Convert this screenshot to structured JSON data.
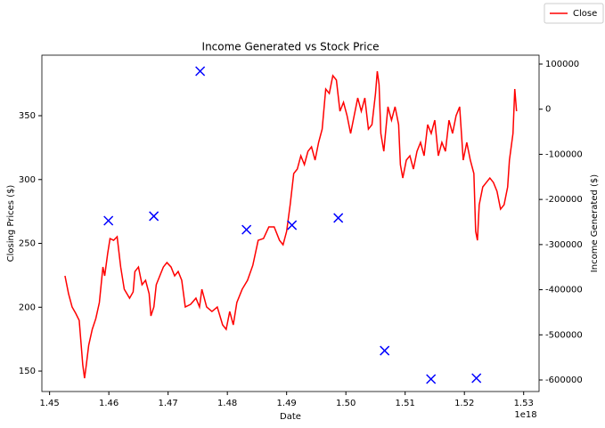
{
  "chart_data": {
    "type": "combo",
    "title": "Income Generated vs Stock Price",
    "xlabel": "Date",
    "ylabel": "Closing Prices ($)",
    "y2label": "Income Generated ($)",
    "x_offset_label": "1e18",
    "xlim": [
      1.4487e+18,
      1.5326e+18
    ],
    "xticks": [
      {
        "value": 1.45e+18,
        "label": "1.45"
      },
      {
        "value": 1.46e+18,
        "label": "1.46"
      },
      {
        "value": 1.47e+18,
        "label": "1.47"
      },
      {
        "value": 1.48e+18,
        "label": "1.48"
      },
      {
        "value": 1.49e+18,
        "label": "1.49"
      },
      {
        "value": 1.5e+18,
        "label": "1.50"
      },
      {
        "value": 1.51e+18,
        "label": "1.51"
      },
      {
        "value": 1.52e+18,
        "label": "1.52"
      },
      {
        "value": 1.53e+18,
        "label": "1.53"
      }
    ],
    "ylim": [
      134,
      397.4
    ],
    "yticks": [
      150,
      200,
      250,
      300,
      350
    ],
    "y2lim": [
      -625600,
      119700
    ],
    "y2ticks": [
      -600000,
      -500000,
      -400000,
      -300000,
      -200000,
      -100000,
      0,
      100000
    ],
    "grid": false,
    "legend": "upper right",
    "series": [
      {
        "name": "Close",
        "type": "line",
        "color": "#ff0000",
        "x": [
          1.4526e+18,
          1.4532e+18,
          1.4538e+18,
          1.4544e+18,
          1.455e+18,
          1.4553e+18,
          1.4556e+18,
          1.4559e+18,
          1.4562e+18,
          1.4566e+18,
          1.4572e+18,
          1.4578e+18,
          1.4584e+18,
          1.459e+18,
          1.4593e+18,
          1.4598e+18,
          1.4602e+18,
          1.4608e+18,
          1.4614e+18,
          1.462e+18,
          1.4626e+18,
          1.4635e+18,
          1.4641e+18,
          1.4644e+18,
          1.465e+18,
          1.4656e+18,
          1.4662e+18,
          1.4668e+18,
          1.4671e+18,
          1.4676e+18,
          1.468e+18,
          1.4686e+18,
          1.4692e+18,
          1.4698e+18,
          1.4705e+18,
          1.4711e+18,
          1.4717e+18,
          1.4723e+18,
          1.4729e+18,
          1.4738e+18,
          1.4747e+18,
          1.4753e+18,
          1.4757e+18,
          1.4765e+18,
          1.4774e+18,
          1.4783e+18,
          1.4792e+18,
          1.4798e+18,
          1.4804e+18,
          1.481e+18,
          1.4816e+18,
          1.4825e+18,
          1.4834e+18,
          1.4843e+18,
          1.4852e+18,
          1.4861e+18,
          1.487e+18,
          1.4879e+18,
          1.4888e+18,
          1.4894e+18,
          1.49e+18,
          1.4906e+18,
          1.4912e+18,
          1.4918e+18,
          1.4924e+18,
          1.493e+18,
          1.4936e+18,
          1.4942e+18,
          1.4948e+18,
          1.4954e+18,
          1.496e+18,
          1.4966e+18,
          1.4972e+18,
          1.4978e+18,
          1.4984e+18,
          1.499e+18,
          1.4996e+18,
          1.5002e+18,
          1.5008e+18,
          1.5014e+18,
          1.502e+18,
          1.5026e+18,
          1.5032e+18,
          1.5038e+18,
          1.5044e+18,
          1.505e+18,
          1.5053e+18,
          1.5056e+18,
          1.5059e+18,
          1.5064e+18,
          1.5071e+18,
          1.5077e+18,
          1.5083e+18,
          1.5089e+18,
          1.5092e+18,
          1.5096e+18,
          1.5102e+18,
          1.5108e+18,
          1.5114e+18,
          1.512e+18,
          1.5126e+18,
          1.5132e+18,
          1.5138e+18,
          1.5144e+18,
          1.515e+18,
          1.5156e+18,
          1.5162e+18,
          1.5168e+18,
          1.5174e+18,
          1.518e+18,
          1.5186e+18,
          1.5192e+18,
          1.5198e+18,
          1.5204e+18,
          1.521e+18,
          1.5216e+18,
          1.5219e+18,
          1.5222e+18,
          1.5225e+18,
          1.5231e+18,
          1.5237e+18,
          1.5243e+18,
          1.5249e+18,
          1.5255e+18,
          1.5261e+18,
          1.5267e+18,
          1.5273e+18,
          1.5276e+18,
          1.5282e+18,
          1.5285e+18,
          1.5288e+18
        ],
        "values": [
          224.6,
          210.6,
          200.2,
          195.3,
          189.7,
          172.3,
          154.9,
          144.4,
          154.9,
          170.2,
          182.7,
          191.1,
          203.7,
          231.5,
          224.6,
          242.0,
          253.8,
          252.4,
          255.2,
          231.5,
          214.1,
          207.1,
          212.0,
          228.0,
          231.5,
          217.6,
          221.1,
          210.6,
          193.2,
          200.2,
          217.6,
          224.6,
          231.5,
          235.0,
          231.5,
          224.6,
          228.0,
          221.1,
          200.2,
          202.3,
          207.1,
          200.2,
          214.1,
          200.2,
          196.7,
          200.2,
          186.2,
          182.7,
          196.7,
          186.2,
          203.7,
          214.1,
          221.1,
          232.9,
          252.4,
          253.8,
          262.9,
          262.9,
          252.4,
          248.9,
          259.4,
          280.3,
          304.7,
          308.2,
          318.6,
          311.7,
          322.1,
          325.6,
          315.2,
          329.1,
          339.5,
          370.9,
          367.4,
          381.4,
          377.9,
          353.5,
          360.5,
          350.0,
          336.1,
          350.0,
          363.9,
          353.5,
          363.9,
          339.5,
          343.0,
          367.4,
          384.8,
          374.4,
          336.1,
          322.1,
          357.0,
          346.5,
          357.0,
          343.0,
          311.7,
          301.2,
          315.2,
          318.6,
          308.2,
          322.1,
          329.1,
          318.6,
          343.0,
          336.1,
          346.5,
          318.6,
          329.1,
          322.1,
          346.5,
          336.1,
          350.0,
          357.0,
          315.2,
          329.1,
          315.2,
          304.7,
          259.4,
          252.4,
          280.3,
          294.2,
          297.7,
          301.2,
          297.7,
          290.8,
          276.8,
          280.3,
          294.2,
          315.2,
          336.1,
          370.9,
          353.5
        ]
      },
      {
        "type": "scatter",
        "axis": "y2",
        "color": "#0000ff",
        "marker": "x",
        "x": [
          1.45993e+18,
          1.46759e+18,
          1.47541e+18,
          1.48323e+18,
          1.4909e+18,
          1.49872e+18,
          1.50654e+18,
          1.51436e+18,
          1.52203e+18
        ],
        "values": [
          -247000,
          -237000,
          84200,
          -267000,
          -257000,
          -241000,
          -535000,
          -598000,
          -596000
        ]
      }
    ]
  }
}
